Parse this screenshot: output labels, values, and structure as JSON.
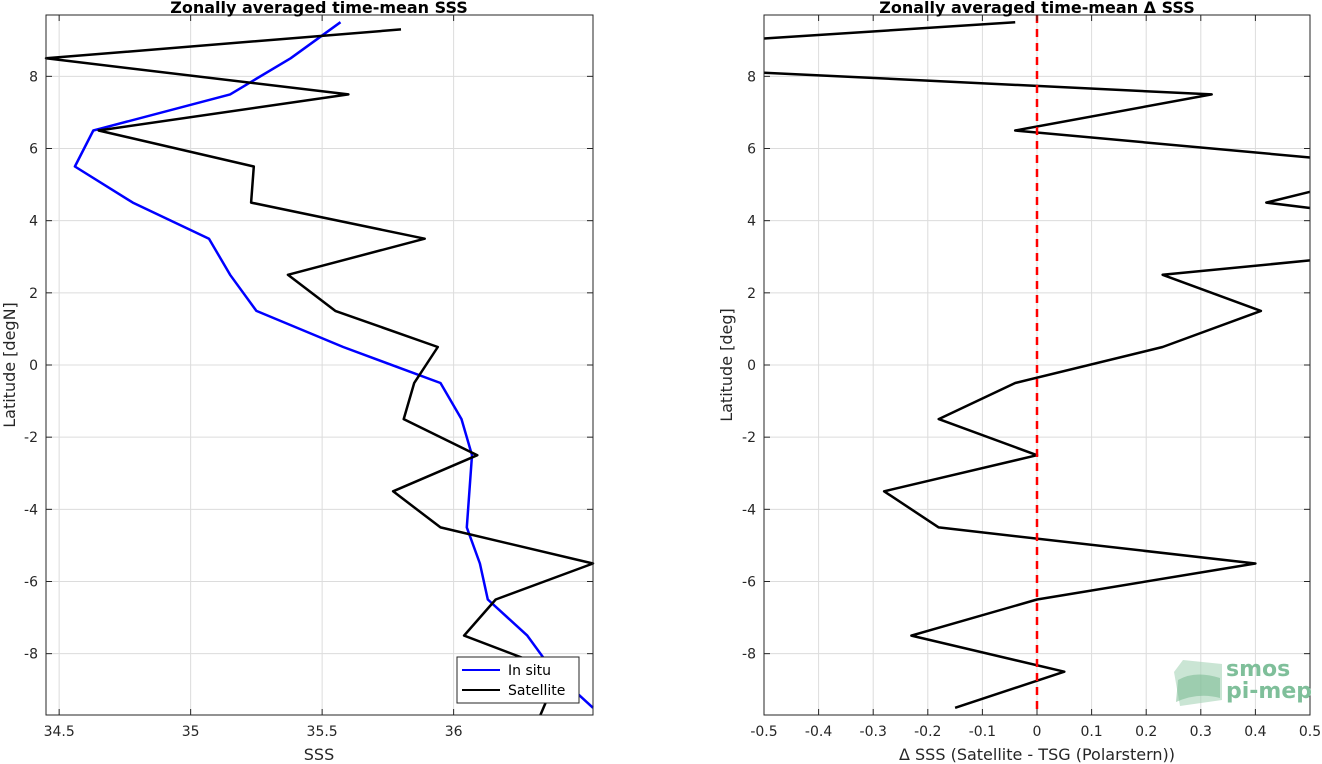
{
  "chart_data": [
    {
      "type": "line",
      "title": "Zonally averaged time-mean SSS",
      "xlabel": "SSS",
      "ylabel": "Latitude [degN]",
      "xlim": [
        34.45,
        36.53
      ],
      "ylim": [
        -9.7,
        9.7
      ],
      "xticks": [
        34.5,
        35,
        35.5,
        36
      ],
      "yticks": [
        -8,
        -6,
        -4,
        -2,
        0,
        2,
        4,
        6,
        8
      ],
      "grid": true,
      "legend": "bottom-right",
      "series": [
        {
          "name": "In situ",
          "color": "#0000ff",
          "x": [
            35.57,
            35.38,
            35.15,
            34.63,
            34.56,
            34.78,
            35.07,
            35.15,
            35.25,
            35.58,
            35.95,
            36.03,
            36.07,
            36.06,
            36.05,
            36.1,
            36.13,
            36.28,
            36.38,
            36.53
          ],
          "y": [
            9.5,
            8.5,
            7.5,
            6.5,
            5.5,
            4.5,
            3.5,
            2.5,
            1.5,
            0.5,
            -0.5,
            -1.5,
            -2.5,
            -3.5,
            -4.5,
            -5.5,
            -6.5,
            -7.5,
            -8.5,
            -9.5
          ]
        },
        {
          "name": "Satellite",
          "color": "#000000",
          "x": [
            35.8,
            34.45,
            35.6,
            34.65,
            35.24,
            35.23,
            35.89,
            35.37,
            35.55,
            35.94,
            35.85,
            35.81,
            36.09,
            35.77,
            35.95,
            36.53,
            36.16,
            36.04,
            36.4,
            36.33
          ],
          "y": [
            9.3,
            8.5,
            7.5,
            6.5,
            5.5,
            4.5,
            3.5,
            2.5,
            1.5,
            0.5,
            -0.5,
            -1.5,
            -2.5,
            -3.5,
            -4.5,
            -5.5,
            -6.5,
            -7.5,
            -8.5,
            -9.7
          ]
        }
      ]
    },
    {
      "type": "line",
      "title": "Zonally averaged time-mean Δ SSS",
      "xlabel": "Δ SSS (Satellite - TSG (Polarstern))",
      "ylabel": "Latitude [deg]",
      "xlim": [
        -0.5,
        0.5
      ],
      "ylim": [
        -9.7,
        9.7
      ],
      "xticks": [
        -0.5,
        -0.4,
        -0.3,
        -0.2,
        -0.1,
        0,
        0.1,
        0.2,
        0.3,
        0.4,
        0.5
      ],
      "yticks": [
        -8,
        -6,
        -4,
        -2,
        0,
        2,
        4,
        6,
        8
      ],
      "grid": true,
      "reference_line": {
        "x": 0,
        "color": "#ff0000",
        "style": "dashed"
      },
      "segments": [
        {
          "color": "#000000",
          "x": [
            -0.04,
            -0.5
          ],
          "y": [
            9.5,
            9.05
          ]
        },
        {
          "color": "#000000",
          "x": [
            -0.5,
            0.32,
            -0.04,
            0.5
          ],
          "y": [
            8.1,
            7.5,
            6.5,
            5.75
          ]
        },
        {
          "color": "#000000",
          "x": [
            0.5,
            0.42,
            0.5
          ],
          "y": [
            4.8,
            4.5,
            4.35
          ]
        },
        {
          "color": "#000000",
          "x": [
            0.5,
            0.23,
            0.41,
            0.23,
            -0.04,
            -0.18,
            0.0,
            -0.28,
            -0.18,
            0.4,
            0.0,
            -0.23,
            0.05,
            -0.15
          ],
          "y": [
            2.9,
            2.5,
            1.5,
            0.5,
            -0.5,
            -1.5,
            -2.5,
            -3.5,
            -4.5,
            -5.5,
            -6.5,
            -7.5,
            -8.5,
            -9.5
          ]
        }
      ]
    }
  ],
  "logo": {
    "line1": "smos",
    "line2": "pi-mep",
    "color": "#7fbf9a"
  }
}
